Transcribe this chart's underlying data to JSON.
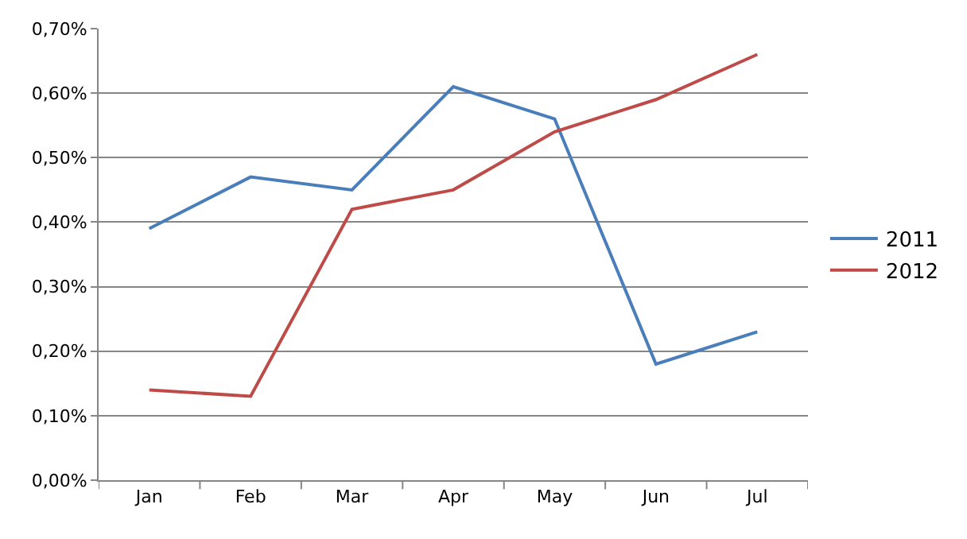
{
  "chart_data": {
    "type": "line",
    "categories": [
      "Jan",
      "Feb",
      "Mar",
      "Apr",
      "May",
      "Jun",
      "Jul"
    ],
    "series": [
      {
        "name": "2011",
        "color": "#4a7ebb",
        "values": [
          0.39,
          0.47,
          0.45,
          0.61,
          0.56,
          0.18,
          0.23
        ]
      },
      {
        "name": "2012",
        "color": "#be4b48",
        "values": [
          0.14,
          0.13,
          0.42,
          0.45,
          0.54,
          0.59,
          0.66
        ]
      }
    ],
    "ylim": [
      0,
      0.7
    ],
    "yticks": [
      {
        "value": 0,
        "label": "0,00%"
      },
      {
        "value": 0.1,
        "label": "0,10%"
      },
      {
        "value": 0.2,
        "label": "0,20%"
      },
      {
        "value": 0.3,
        "label": "0,30%"
      },
      {
        "value": 0.4,
        "label": "0,40%"
      },
      {
        "value": 0.5,
        "label": "0,50%"
      },
      {
        "value": 0.6,
        "label": "0,60%"
      },
      {
        "value": 0.7,
        "label": "0,70%"
      }
    ],
    "grid": "y",
    "legend": "right",
    "marker": "none",
    "line_style": "solid"
  }
}
